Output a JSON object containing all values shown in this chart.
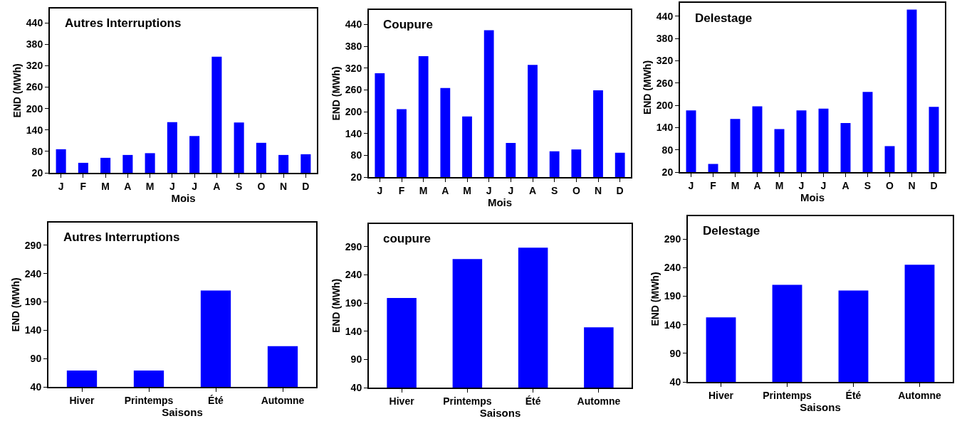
{
  "chart_data": [
    {
      "type": "bar",
      "title": "Autres Interruptions",
      "xlabel": "Mois",
      "ylabel": "END (MWh)",
      "categories": [
        "J",
        "F",
        "M",
        "A",
        "M",
        "J",
        "J",
        "A",
        "S",
        "O",
        "N",
        "D"
      ],
      "values": [
        86,
        48,
        62,
        70,
        75,
        162,
        123,
        345,
        161,
        104,
        70,
        72
      ],
      "color": "#0000ff",
      "ylim": [
        20,
        480
      ],
      "yticks": [
        20,
        80,
        140,
        200,
        260,
        320,
        380,
        440
      ]
    },
    {
      "type": "bar",
      "title": "Coupure",
      "xlabel": "Mois",
      "ylabel": "END (MWh)",
      "categories": [
        "J",
        "F",
        "M",
        "A",
        "M",
        "J",
        "J",
        "A",
        "S",
        "O",
        "N",
        "D"
      ],
      "values": [
        306,
        207,
        353,
        265,
        187,
        424,
        114,
        329,
        91,
        96,
        259,
        87
      ],
      "color": "#0000ff",
      "ylim": [
        20,
        480
      ],
      "yticks": [
        20,
        80,
        140,
        200,
        260,
        320,
        380,
        440
      ]
    },
    {
      "type": "bar",
      "title": "Delestage",
      "xlabel": "Mois",
      "ylabel": "END (MWh)",
      "categories": [
        "J",
        "F",
        "M",
        "A",
        "M",
        "J",
        "J",
        "A",
        "S",
        "O",
        "N",
        "D"
      ],
      "values": [
        186,
        42,
        163,
        197,
        136,
        186,
        191,
        152,
        236,
        90,
        458,
        196
      ],
      "color": "#0000ff",
      "ylim": [
        20,
        476
      ],
      "yticks": [
        20,
        80,
        140,
        200,
        260,
        320,
        380,
        440
      ]
    },
    {
      "type": "bar",
      "title": "Autres Interruptions",
      "xlabel": "Saisons",
      "ylabel": "END (MWh)",
      "categories": [
        "Hiver",
        "Printemps",
        "Été",
        "Automne"
      ],
      "values": [
        69,
        69,
        210,
        112
      ],
      "color": "#0000ff",
      "ylim": [
        40,
        330
      ],
      "yticks": [
        40,
        90,
        140,
        190,
        240,
        290
      ]
    },
    {
      "type": "bar",
      "title": "coupure",
      "xlabel": "Saisons",
      "ylabel": "END (MWh)",
      "categories": [
        "Hiver",
        "Printemps",
        "Été",
        "Automne"
      ],
      "values": [
        199,
        268,
        288,
        147
      ],
      "color": "#0000ff",
      "ylim": [
        40,
        330
      ],
      "yticks": [
        40,
        90,
        140,
        190,
        240,
        290
      ]
    },
    {
      "type": "bar",
      "title": "Delestage",
      "xlabel": "Saisons",
      "ylabel": "END (MWh)",
      "categories": [
        "Hiver",
        "Printemps",
        "Été",
        "Automne"
      ],
      "values": [
        153,
        210,
        200,
        245
      ],
      "color": "#0000ff",
      "ylim": [
        40,
        330
      ],
      "yticks": [
        40,
        90,
        140,
        190,
        240,
        290
      ]
    }
  ]
}
